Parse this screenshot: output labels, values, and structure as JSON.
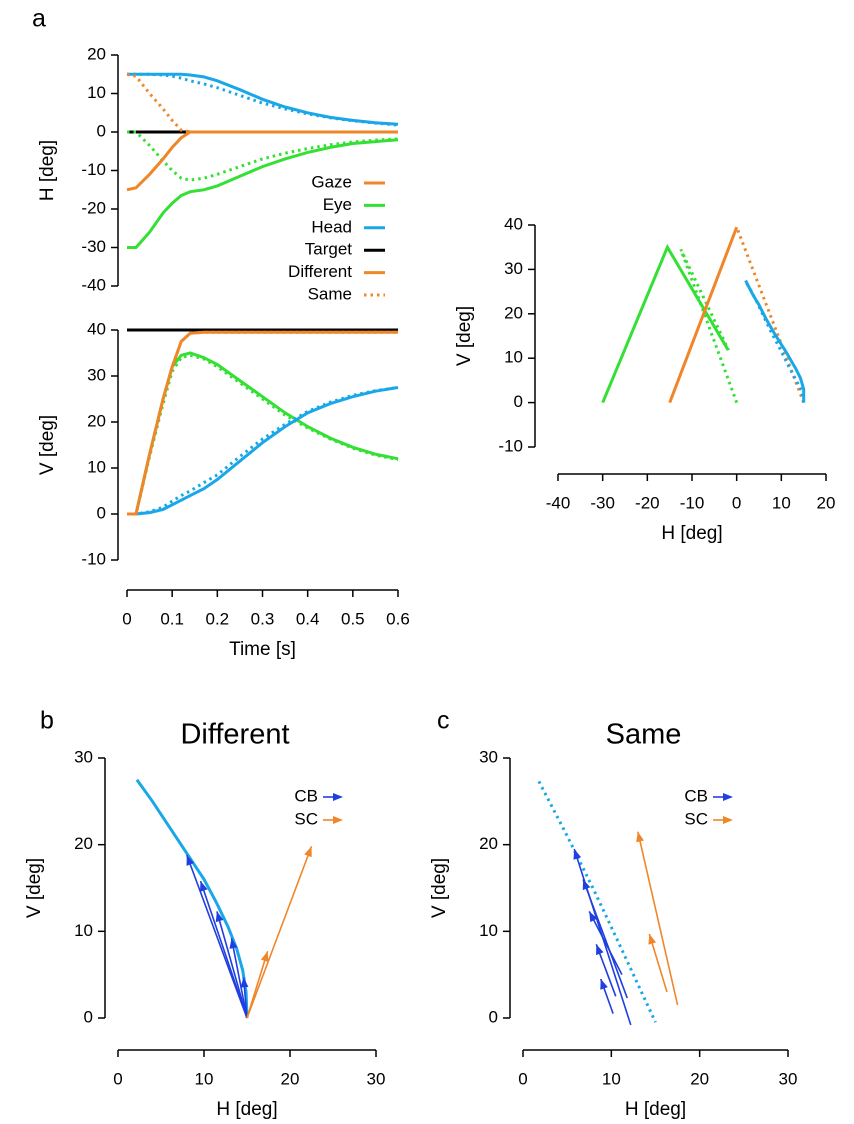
{
  "chart_data": [
    {
      "type": "line",
      "panel": "a",
      "ylabel": "H [deg]",
      "x": [
        0,
        0.02,
        0.05,
        0.08,
        0.1,
        0.12,
        0.14,
        0.17,
        0.2,
        0.25,
        0.3,
        0.35,
        0.4,
        0.45,
        0.5,
        0.55,
        0.6
      ],
      "xlim": [
        0,
        0.6
      ],
      "ylim": [
        -40,
        20
      ],
      "yticks": [
        -40,
        -30,
        -20,
        -10,
        0,
        10,
        20
      ],
      "series": [
        {
          "color": "#000000",
          "dash": "solid",
          "values": [
            0,
            0,
            0,
            0,
            0,
            0,
            0,
            0,
            0,
            0,
            0,
            0,
            0,
            0,
            0,
            0,
            0
          ]
        },
        {
          "color": "#33e033",
          "dash": "solid",
          "values": [
            -30,
            -30,
            -26,
            -21,
            -18.5,
            -16.5,
            -15.5,
            -15,
            -14,
            -11.5,
            -9,
            -7,
            -5.3,
            -4,
            -3,
            -2.5,
            -2
          ]
        },
        {
          "color": "#33e033",
          "dash": "dotted",
          "values": [
            0,
            0,
            -3.5,
            -7.5,
            -10,
            -12,
            -12.5,
            -12,
            -11,
            -9,
            -7,
            -5.5,
            -4.3,
            -3.3,
            -2.6,
            -2.1,
            -1.8
          ]
        },
        {
          "color": "#1aa7e8",
          "dash": "solid",
          "values": [
            15,
            15,
            15,
            15,
            15,
            15,
            14.8,
            14.3,
            13.3,
            11,
            8.5,
            6.5,
            5,
            3.8,
            3,
            2.4,
            2
          ]
        },
        {
          "color": "#1aa7e8",
          "dash": "dotted",
          "values": [
            15,
            15,
            15,
            14.8,
            14.5,
            14,
            13.3,
            12.5,
            11.5,
            9.5,
            7.5,
            6,
            4.7,
            3.7,
            2.9,
            2.3,
            1.8
          ]
        },
        {
          "color": "#f0862a",
          "dash": "dotted",
          "values": [
            15,
            14.5,
            10,
            6,
            3,
            0.5,
            0,
            0,
            0,
            0,
            0,
            0,
            0,
            0,
            0,
            0,
            0
          ]
        },
        {
          "color": "#f0862a",
          "dash": "solid",
          "values": [
            -15,
            -14.5,
            -11,
            -7,
            -4,
            -1.5,
            0,
            0,
            0,
            0,
            0,
            0,
            0,
            0,
            0,
            0,
            0
          ]
        }
      ],
      "legend": [
        {
          "label": "Gaze",
          "color": "#f0862a",
          "dash": "solid"
        },
        {
          "label": "Eye",
          "color": "#33e033",
          "dash": "solid"
        },
        {
          "label": "Head",
          "color": "#1aa7e8",
          "dash": "solid"
        },
        {
          "label": "Target",
          "color": "#000000",
          "dash": "solid"
        },
        {
          "label": "Different",
          "color": "#f0862a",
          "dash": "solid"
        },
        {
          "label": "Same",
          "color": "#f0862a",
          "dash": "dotted"
        }
      ]
    },
    {
      "type": "line",
      "ylabel": "V [deg]",
      "xlabel": "Time [s]",
      "x": [
        0,
        0.02,
        0.05,
        0.08,
        0.1,
        0.12,
        0.14,
        0.17,
        0.2,
        0.25,
        0.3,
        0.35,
        0.4,
        0.45,
        0.5,
        0.55,
        0.6
      ],
      "xlim": [
        0,
        0.6
      ],
      "xticks": [
        0,
        0.1,
        0.2,
        0.3,
        0.4,
        0.5,
        0.6
      ],
      "ylim": [
        -10,
        40
      ],
      "yticks": [
        -10,
        0,
        10,
        20,
        30,
        40
      ],
      "series": [
        {
          "color": "#000000",
          "dash": "solid",
          "values": [
            40,
            40,
            40,
            40,
            40,
            40,
            40,
            40,
            40,
            40,
            40,
            40,
            40,
            40,
            40,
            40,
            40
          ]
        },
        {
          "color": "#33e033",
          "dash": "solid",
          "values": [
            0,
            0,
            13,
            25,
            32,
            34.5,
            35,
            34,
            32.5,
            29,
            25.5,
            22,
            19,
            16.5,
            14.5,
            13,
            12
          ]
        },
        {
          "color": "#33e033",
          "dash": "dotted",
          "values": [
            0,
            0,
            12.5,
            24,
            31,
            34,
            34.5,
            33.7,
            32,
            28.5,
            25,
            21.5,
            18.7,
            16.3,
            14.3,
            12.8,
            11.8
          ]
        },
        {
          "color": "#1aa7e8",
          "dash": "solid",
          "values": [
            0,
            0,
            0.3,
            1,
            2,
            3,
            4,
            5.5,
            7.5,
            11.5,
            15.5,
            19,
            22,
            24,
            25.5,
            26.7,
            27.5
          ]
        },
        {
          "color": "#1aa7e8",
          "dash": "dotted",
          "values": [
            0,
            0,
            0.5,
            1.5,
            2.8,
            4,
            5,
            6.8,
            8.5,
            12.5,
            16.3,
            19.5,
            22.3,
            24.3,
            25.8,
            26.8,
            27.5
          ]
        },
        {
          "color": "#f0862a",
          "dash": "dotted",
          "values": [
            0,
            0,
            13,
            25,
            32,
            37.5,
            39.3,
            39.5,
            39.5,
            39.5,
            39.5,
            39.5,
            39.5,
            39.5,
            39.5,
            39.5,
            39.5
          ]
        },
        {
          "color": "#f0862a",
          "dash": "solid",
          "values": [
            0,
            0,
            13,
            25,
            32,
            37.5,
            39.3,
            39.5,
            39.5,
            39.5,
            39.5,
            39.5,
            39.5,
            39.5,
            39.5,
            39.5,
            39.5
          ]
        }
      ]
    },
    {
      "type": "line",
      "xlabel": "H [deg]",
      "ylabel": "V [deg]",
      "xlim": [
        -40,
        20
      ],
      "xticks": [
        -40,
        -30,
        -20,
        -10,
        0,
        10,
        20
      ],
      "ylim": [
        -10,
        40
      ],
      "yticks": [
        -10,
        0,
        10,
        20,
        30,
        40
      ],
      "series": [
        {
          "color": "#33e033",
          "dash": "solid",
          "x": [
            -30,
            -15.5,
            -2
          ],
          "values": [
            0,
            35,
            12
          ]
        },
        {
          "color": "#33e033",
          "dash": "dotted",
          "x": [
            0,
            -12.5,
            -1.8
          ],
          "values": [
            0,
            34.5,
            11.8
          ]
        },
        {
          "color": "#f0862a",
          "dash": "solid",
          "x": [
            -15,
            0
          ],
          "values": [
            0,
            39.5
          ]
        },
        {
          "color": "#f0862a",
          "dash": "dotted",
          "x": [
            15,
            0
          ],
          "values": [
            0,
            39.5
          ]
        },
        {
          "color": "#1aa7e8",
          "dash": "solid",
          "x": [
            15,
            15,
            14.3,
            13.3,
            11,
            8.5,
            6.5,
            5,
            3.8,
            3,
            2.4,
            2
          ],
          "values": [
            0,
            3,
            5.5,
            7.5,
            11.5,
            15.5,
            19,
            22,
            24,
            25.5,
            26.7,
            27.5
          ]
        },
        {
          "color": "#1aa7e8",
          "dash": "dotted",
          "x": [
            15,
            14.5,
            13.3,
            11.5,
            9.5,
            7.5,
            6,
            4.7,
            3.7,
            2.9,
            1.8
          ],
          "values": [
            0,
            2.8,
            5,
            8.5,
            12.5,
            16.3,
            19.5,
            22.3,
            24.3,
            25.8,
            27.5
          ]
        }
      ]
    },
    {
      "type": "line",
      "panel": "b",
      "title": "Different",
      "xlabel": "H [deg]",
      "ylabel": "V [deg]",
      "xlim": [
        0,
        30
      ],
      "xticks": [
        0,
        10,
        20,
        30
      ],
      "ylim": [
        0,
        30
      ],
      "yticks": [
        0,
        10,
        20,
        30
      ],
      "series": [
        {
          "color": "#1aa7e8",
          "dash": "solid",
          "x": [
            2.2,
            4,
            6,
            8,
            10,
            11.5,
            12.8,
            13.8,
            14.5,
            14.9,
            15
          ],
          "values": [
            27.5,
            25,
            22,
            19,
            16,
            13.2,
            10.5,
            8,
            5.5,
            3,
            0
          ]
        }
      ],
      "arrow_groups": [
        {
          "name": "CB",
          "color": "#1f3fe0",
          "arrows": [
            {
              "x": [
                15,
                14.6
              ],
              "y": [
                0,
                4.7
              ]
            },
            {
              "x": [
                15,
                13.2
              ],
              "y": [
                0,
                9.2
              ]
            },
            {
              "x": [
                15,
                11.5
              ],
              "y": [
                0,
                12.3
              ]
            },
            {
              "x": [
                15,
                9.6
              ],
              "y": [
                0,
                15.8
              ]
            },
            {
              "x": [
                15,
                8
              ],
              "y": [
                0,
                18.8
              ]
            }
          ]
        },
        {
          "name": "SC",
          "color": "#f0862a",
          "arrows": [
            {
              "x": [
                15,
                17.4
              ],
              "y": [
                0,
                7.7
              ]
            },
            {
              "x": [
                15,
                22.5
              ],
              "y": [
                0,
                19.8
              ]
            }
          ]
        }
      ]
    },
    {
      "type": "line",
      "panel": "c",
      "title": "Same",
      "xlabel": "H [deg]",
      "ylabel": "V [deg]",
      "xlim": [
        0,
        30
      ],
      "xticks": [
        0,
        10,
        20,
        30
      ],
      "ylim": [
        0,
        30
      ],
      "yticks": [
        0,
        10,
        20,
        30
      ],
      "series": [
        {
          "color": "#1aa7e8",
          "dash": "dotted",
          "x": [
            1.8,
            5,
            8,
            11,
            15
          ],
          "values": [
            27.3,
            21,
            14.8,
            8.3,
            -0.5
          ]
        }
      ],
      "arrow_groups": [
        {
          "name": "CB",
          "color": "#1f3fe0",
          "arrows": [
            {
              "x": [
                12.2,
                5.8
              ],
              "y": [
                -0.8,
                19.5
              ]
            },
            {
              "x": [
                11.8,
                6.8
              ],
              "y": [
                2.3,
                16
              ]
            },
            {
              "x": [
                11.2,
                7.5
              ],
              "y": [
                5,
                12.3
              ]
            },
            {
              "x": [
                10.5,
                8.3
              ],
              "y": [
                2.5,
                8.5
              ]
            },
            {
              "x": [
                10.2,
                8.8
              ],
              "y": [
                0.5,
                4.5
              ]
            }
          ]
        },
        {
          "name": "SC",
          "color": "#f0862a",
          "arrows": [
            {
              "x": [
                17.5,
                13
              ],
              "y": [
                1.5,
                21.5
              ]
            },
            {
              "x": [
                16.3,
                14.3
              ],
              "y": [
                3,
                9.7
              ]
            }
          ]
        }
      ]
    }
  ]
}
